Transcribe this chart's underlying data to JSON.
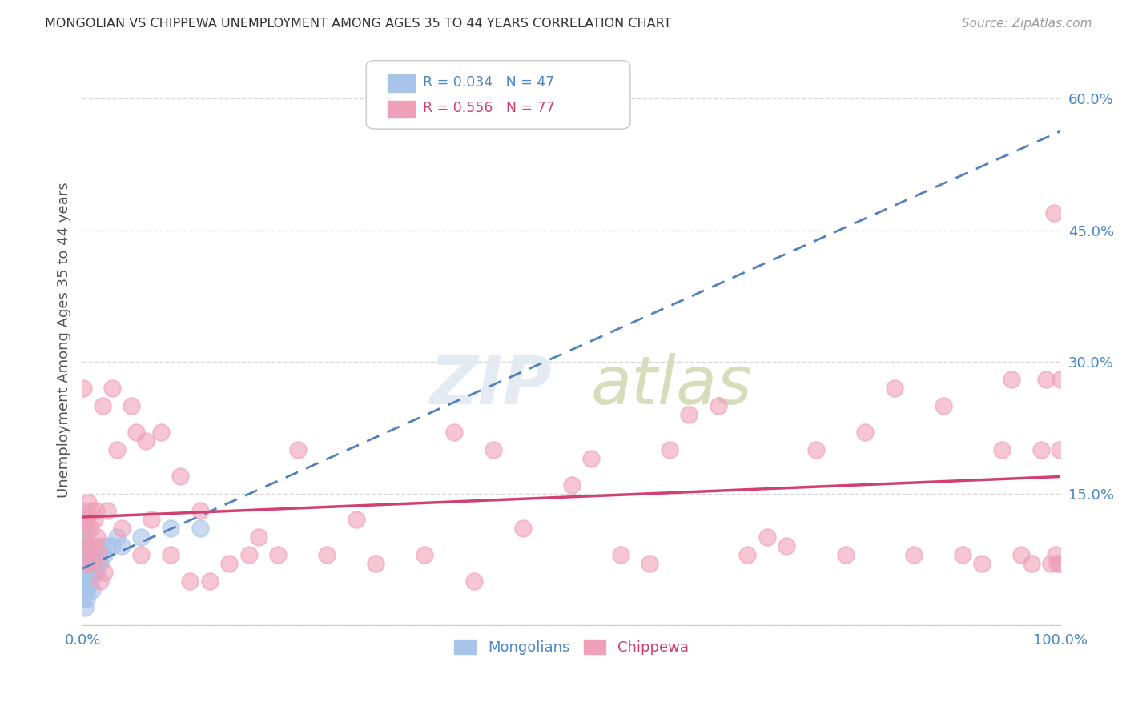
{
  "title": "MONGOLIAN VS CHIPPEWA UNEMPLOYMENT AMONG AGES 35 TO 44 YEARS CORRELATION CHART",
  "source": "Source: ZipAtlas.com",
  "ylabel": "Unemployment Among Ages 35 to 44 years",
  "legend_mongolians": "Mongolians",
  "legend_chippewa": "Chippewa",
  "mongolian_R": 0.034,
  "mongolian_N": 47,
  "chippewa_R": 0.556,
  "chippewa_N": 77,
  "mongolian_color": "#a8c4e8",
  "chippewa_color": "#f0a0b8",
  "mongolian_line_color": "#5080c0",
  "chippewa_line_color": "#d04070",
  "bg_color": "#ffffff",
  "grid_color": "#d8d8d8",
  "ytick_vals": [
    0.0,
    0.15,
    0.3,
    0.45,
    0.6
  ],
  "ytick_labels": [
    "",
    "15.0%",
    "30.0%",
    "45.0%",
    "60.0%"
  ],
  "xlim": [
    0.0,
    1.0
  ],
  "ylim": [
    0.0,
    0.65
  ],
  "mongolian_x": [
    0.0005,
    0.0005,
    0.001,
    0.001,
    0.001,
    0.001,
    0.001,
    0.001,
    0.0015,
    0.0015,
    0.002,
    0.002,
    0.002,
    0.002,
    0.003,
    0.003,
    0.003,
    0.004,
    0.004,
    0.004,
    0.005,
    0.005,
    0.006,
    0.006,
    0.007,
    0.007,
    0.008,
    0.008,
    0.009,
    0.01,
    0.01,
    0.011,
    0.012,
    0.013,
    0.014,
    0.015,
    0.016,
    0.018,
    0.02,
    0.022,
    0.025,
    0.03,
    0.035,
    0.04,
    0.06,
    0.09,
    0.12
  ],
  "mongolian_y": [
    0.05,
    0.08,
    0.03,
    0.05,
    0.07,
    0.09,
    0.11,
    0.13,
    0.04,
    0.07,
    0.02,
    0.05,
    0.08,
    0.1,
    0.04,
    0.06,
    0.09,
    0.03,
    0.06,
    0.08,
    0.04,
    0.07,
    0.05,
    0.08,
    0.06,
    0.09,
    0.05,
    0.08,
    0.06,
    0.04,
    0.07,
    0.06,
    0.07,
    0.08,
    0.06,
    0.07,
    0.08,
    0.07,
    0.09,
    0.08,
    0.09,
    0.09,
    0.1,
    0.09,
    0.1,
    0.11,
    0.11
  ],
  "chippewa_x": [
    0.001,
    0.002,
    0.003,
    0.004,
    0.005,
    0.006,
    0.007,
    0.008,
    0.009,
    0.01,
    0.012,
    0.013,
    0.014,
    0.015,
    0.016,
    0.018,
    0.02,
    0.022,
    0.025,
    0.03,
    0.035,
    0.04,
    0.05,
    0.055,
    0.06,
    0.065,
    0.07,
    0.08,
    0.09,
    0.1,
    0.11,
    0.12,
    0.13,
    0.15,
    0.17,
    0.18,
    0.2,
    0.22,
    0.25,
    0.28,
    0.3,
    0.35,
    0.38,
    0.4,
    0.42,
    0.45,
    0.5,
    0.52,
    0.55,
    0.58,
    0.6,
    0.62,
    0.65,
    0.68,
    0.7,
    0.72,
    0.75,
    0.78,
    0.8,
    0.83,
    0.85,
    0.88,
    0.9,
    0.92,
    0.94,
    0.95,
    0.96,
    0.97,
    0.98,
    0.985,
    0.99,
    0.993,
    0.995,
    0.997,
    0.999,
    1.0,
    1.0
  ],
  "chippewa_y": [
    0.27,
    0.09,
    0.12,
    0.07,
    0.11,
    0.14,
    0.09,
    0.11,
    0.13,
    0.07,
    0.12,
    0.09,
    0.13,
    0.1,
    0.08,
    0.05,
    0.25,
    0.06,
    0.13,
    0.27,
    0.2,
    0.11,
    0.25,
    0.22,
    0.08,
    0.21,
    0.12,
    0.22,
    0.08,
    0.17,
    0.05,
    0.13,
    0.05,
    0.07,
    0.08,
    0.1,
    0.08,
    0.2,
    0.08,
    0.12,
    0.07,
    0.08,
    0.22,
    0.05,
    0.2,
    0.11,
    0.16,
    0.19,
    0.08,
    0.07,
    0.2,
    0.24,
    0.25,
    0.08,
    0.1,
    0.09,
    0.2,
    0.08,
    0.22,
    0.27,
    0.08,
    0.25,
    0.08,
    0.07,
    0.2,
    0.28,
    0.08,
    0.07,
    0.2,
    0.28,
    0.07,
    0.47,
    0.08,
    0.07,
    0.2,
    0.28,
    0.07
  ]
}
